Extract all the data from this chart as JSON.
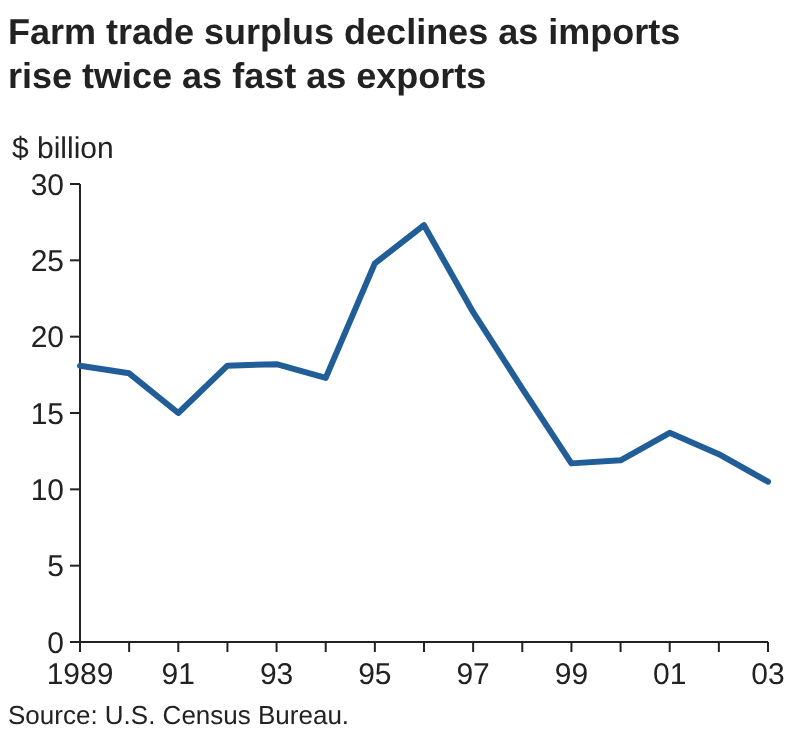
{
  "chart_data": {
    "type": "line",
    "title": "Farm trade surplus declines as imports rise twice as fast as exports",
    "ylabel": "$ billion",
    "x": [
      1989,
      1990,
      1991,
      1992,
      1993,
      1994,
      1995,
      1996,
      1997,
      1998,
      1999,
      2000,
      2001,
      2002,
      2003
    ],
    "series": [
      {
        "color": "#215d96",
        "values": [
          18.1,
          17.6,
          15.0,
          18.1,
          18.2,
          17.3,
          24.8,
          27.3,
          21.6,
          16.6,
          11.7,
          11.9,
          13.7,
          12.3,
          10.5
        ]
      }
    ],
    "xlim": [
      1989,
      2003
    ],
    "ylim": [
      0,
      30
    ],
    "yticks": [
      0,
      5,
      10,
      15,
      20,
      25,
      30
    ],
    "xticks": [
      {
        "value": 1989,
        "label": "1989"
      },
      {
        "value": 1990,
        "label": null
      },
      {
        "value": 1991,
        "label": "91"
      },
      {
        "value": 1992,
        "label": null
      },
      {
        "value": 1993,
        "label": "93"
      },
      {
        "value": 1994,
        "label": null
      },
      {
        "value": 1995,
        "label": "95"
      },
      {
        "value": 1996,
        "label": null
      },
      {
        "value": 1997,
        "label": "97"
      },
      {
        "value": 1998,
        "label": null
      },
      {
        "value": 1999,
        "label": "99"
      },
      {
        "value": 2000,
        "label": null
      },
      {
        "value": 2001,
        "label": "01"
      },
      {
        "value": 2002,
        "label": null
      },
      {
        "value": 2003,
        "label": "03"
      }
    ],
    "grid": false,
    "line_style": "solid",
    "annotations": [
      "Source: U.S. Census Bureau."
    ]
  }
}
